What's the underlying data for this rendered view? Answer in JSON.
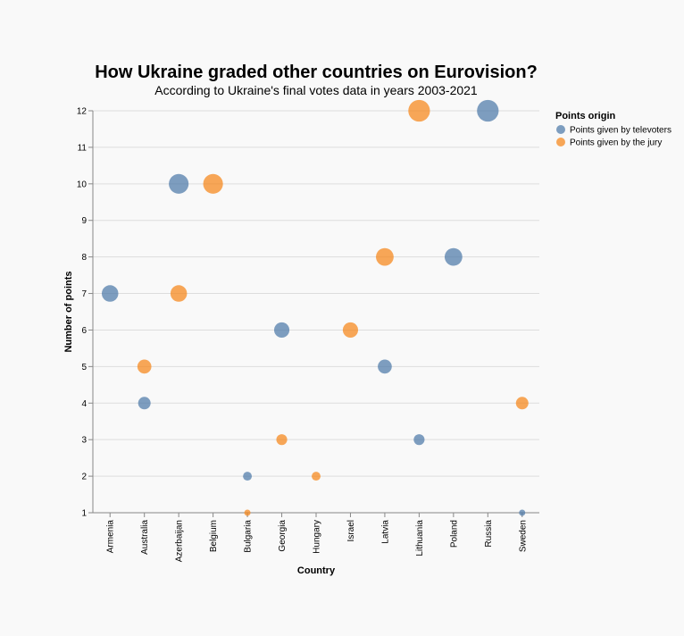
{
  "chart_data": {
    "type": "scatter",
    "title": "How Ukraine graded other countries on Eurovision?",
    "subtitle": "According to Ukraine's final votes data in years 2003-2021",
    "xlabel": "Country",
    "ylabel": "Number of points",
    "categories": [
      "Armenia",
      "Australia",
      "Azerbaijan",
      "Belgium",
      "Bulgaria",
      "Georgia",
      "Hungary",
      "Israel",
      "Latvia",
      "Lithuania",
      "Poland",
      "Russia",
      "Sweden"
    ],
    "yticks": [
      1,
      2,
      3,
      4,
      5,
      6,
      7,
      8,
      9,
      10,
      11,
      12
    ],
    "ylim": [
      1,
      12
    ],
    "grid": true,
    "legend": {
      "title": "Points origin",
      "placement": "right"
    },
    "series": [
      {
        "name": "Points given by televoters",
        "color": "#4c78a8",
        "points": [
          {
            "x": "Armenia",
            "y": 7
          },
          {
            "x": "Australia",
            "y": 4
          },
          {
            "x": "Azerbaijan",
            "y": 10
          },
          {
            "x": "Bulgaria",
            "y": 2
          },
          {
            "x": "Georgia",
            "y": 6
          },
          {
            "x": "Latvia",
            "y": 5
          },
          {
            "x": "Lithuania",
            "y": 3
          },
          {
            "x": "Poland",
            "y": 8
          },
          {
            "x": "Russia",
            "y": 12
          },
          {
            "x": "Sweden",
            "y": 1
          }
        ]
      },
      {
        "name": "Points given by the jury",
        "color": "#f58518",
        "points": [
          {
            "x": "Australia",
            "y": 5
          },
          {
            "x": "Azerbaijan",
            "y": 7
          },
          {
            "x": "Belgium",
            "y": 10
          },
          {
            "x": "Bulgaria",
            "y": 1
          },
          {
            "x": "Georgia",
            "y": 3
          },
          {
            "x": "Hungary",
            "y": 2
          },
          {
            "x": "Israel",
            "y": 6
          },
          {
            "x": "Latvia",
            "y": 8
          },
          {
            "x": "Lithuania",
            "y": 12
          },
          {
            "x": "Sweden",
            "y": 4
          }
        ]
      }
    ],
    "marker_size_encodes": "y"
  }
}
